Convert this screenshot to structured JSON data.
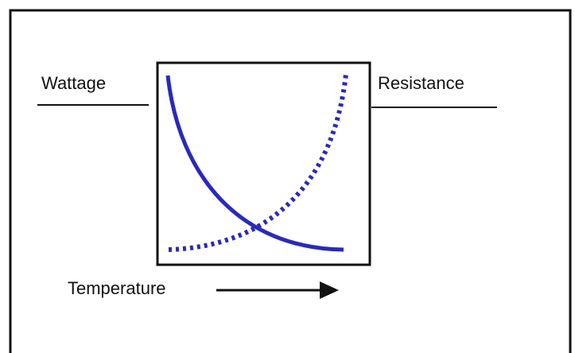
{
  "labels": {
    "left": "Wattage",
    "right": "Resistance",
    "bottom": "Temperature"
  }
}
